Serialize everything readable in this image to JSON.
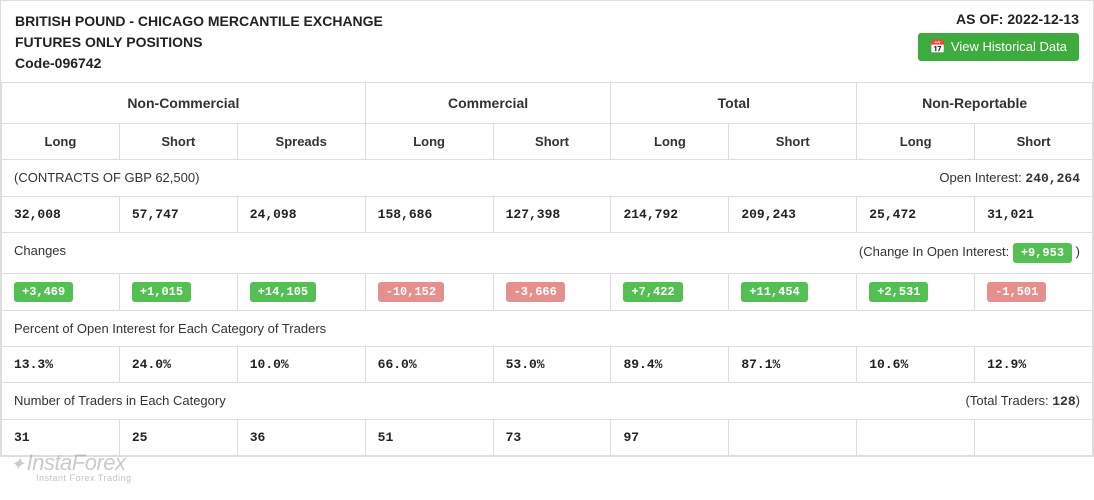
{
  "header": {
    "title_line1": "BRITISH POUND - CHICAGO MERCANTILE EXCHANGE",
    "title_line2": "FUTURES ONLY POSITIONS",
    "code": "Code-096742",
    "asof_label": "AS OF:",
    "asof_date": "2022-12-13",
    "button_label": "View Historical Data",
    "button_icon": "📅"
  },
  "groups": {
    "g1": "Non-Commercial",
    "g2": "Commercial",
    "g3": "Total",
    "g4": "Non-Reportable"
  },
  "subheaders": {
    "c1": "Long",
    "c2": "Short",
    "c3": "Spreads",
    "c4": "Long",
    "c5": "Short",
    "c6": "Long",
    "c7": "Short",
    "c8": "Long",
    "c9": "Short"
  },
  "contracts_row": {
    "left": "(CONTRACTS OF GBP 62,500)",
    "right_label": "Open Interest: ",
    "right_value": "240,264"
  },
  "values": {
    "v1": "32,008",
    "v2": "57,747",
    "v3": "24,098",
    "v4": "158,686",
    "v5": "127,398",
    "v6": "214,792",
    "v7": "209,243",
    "v8": "25,472",
    "v9": "31,021"
  },
  "changes_row": {
    "left": "Changes",
    "right_label": "(Change In Open Interest: ",
    "right_value": "+9,953",
    "right_close": " )"
  },
  "changes": {
    "c1": {
      "val": "+3,469",
      "sign": "pos"
    },
    "c2": {
      "val": "+1,015",
      "sign": "pos"
    },
    "c3": {
      "val": "+14,105",
      "sign": "pos"
    },
    "c4": {
      "val": "-10,152",
      "sign": "neg"
    },
    "c5": {
      "val": "-3,666",
      "sign": "neg"
    },
    "c6": {
      "val": "+7,422",
      "sign": "pos"
    },
    "c7": {
      "val": "+11,454",
      "sign": "pos"
    },
    "c8": {
      "val": "+2,531",
      "sign": "pos"
    },
    "c9": {
      "val": "-1,501",
      "sign": "neg"
    }
  },
  "pct_row_label": "Percent of Open Interest for Each Category of Traders",
  "pct": {
    "p1": "13.3%",
    "p2": "24.0%",
    "p3": "10.0%",
    "p4": "66.0%",
    "p5": "53.0%",
    "p6": "89.4%",
    "p7": "87.1%",
    "p8": "10.6%",
    "p9": "12.9%"
  },
  "traders_row": {
    "left": "Number of Traders in Each Category",
    "right_label": "(Total Traders: ",
    "right_value": "128",
    "right_close": ")"
  },
  "traders": {
    "t1": "31",
    "t2": "25",
    "t3": "36",
    "t4": "51",
    "t5": "73",
    "t6": "97",
    "t7": "",
    "t8": ""
  },
  "watermark": {
    "brand": "InstaForex",
    "sub": "Instant Forex Trading"
  },
  "colors": {
    "pos_bg": "#54c054",
    "neg_bg": "#e68f8f",
    "btn_bg": "#3eab3e",
    "border": "#dddddd"
  }
}
